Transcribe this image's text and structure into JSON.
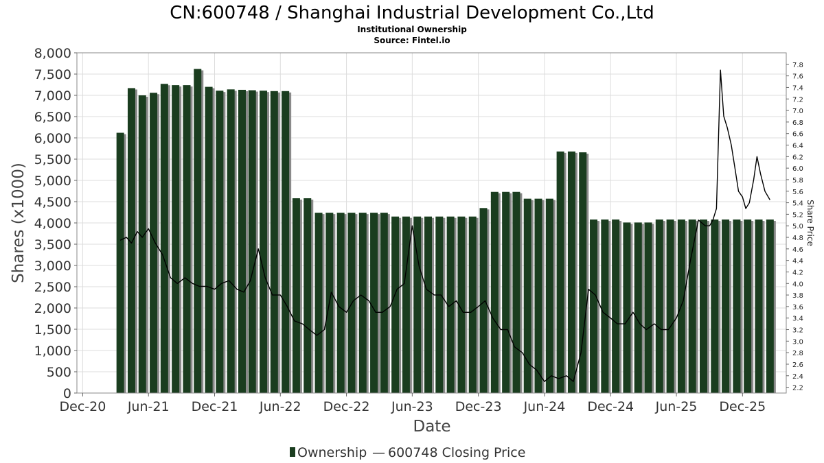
{
  "chart_data": {
    "type": "bar",
    "title": "CN:600748 / Shanghai Industrial Development Co.,Ltd",
    "subtitle": "Institutional Ownership",
    "source": "Source: Fintel.io",
    "xlabel": "Date",
    "ylabel": "Shares (x1000)",
    "y2label": "Share Price",
    "ylim": [
      0,
      8000
    ],
    "yticks": [
      0,
      500,
      1000,
      1500,
      2000,
      2500,
      3000,
      3500,
      4000,
      4500,
      5000,
      5500,
      6000,
      6500,
      7000,
      7500,
      8000
    ],
    "ytick_labels": [
      "0",
      "500",
      "1,000",
      "1,500",
      "2,000",
      "2,500",
      "3,000",
      "3,500",
      "4,000",
      "4,500",
      "5,000",
      "5,500",
      "6,000",
      "6,500",
      "7,000",
      "7,500",
      "8,000"
    ],
    "y2lim": [
      2.1,
      8.0
    ],
    "y2ticks": [
      2.2,
      2.4,
      2.6,
      2.8,
      3.0,
      3.2,
      3.4,
      3.6,
      3.8,
      4.0,
      4.2,
      4.4,
      4.6,
      4.8,
      5.0,
      5.2,
      5.4,
      5.6,
      5.8,
      6.0,
      6.2,
      6.4,
      6.6,
      6.8,
      7.0,
      7.2,
      7.4,
      7.6,
      7.8
    ],
    "xlim": [
      "2020-11-15",
      "2026-04-01"
    ],
    "xticks": [
      {
        "date": "2020-12-01",
        "label": "Dec-20"
      },
      {
        "date": "2021-06-01",
        "label": "Jun-21"
      },
      {
        "date": "2021-12-01",
        "label": "Dec-21"
      },
      {
        "date": "2022-06-01",
        "label": "Jun-22"
      },
      {
        "date": "2022-12-01",
        "label": "Dec-22"
      },
      {
        "date": "2023-06-01",
        "label": "Jun-23"
      },
      {
        "date": "2023-12-01",
        "label": "Dec-23"
      },
      {
        "date": "2024-06-01",
        "label": "Jun-24"
      },
      {
        "date": "2024-12-01",
        "label": "Dec-24"
      },
      {
        "date": "2025-06-01",
        "label": "Jun-25"
      },
      {
        "date": "2025-12-01",
        "label": "Dec-25"
      }
    ],
    "grid": true,
    "legend_position": "bottom",
    "colors": {
      "bar": "#1a3d1f",
      "bar_shadow": "#8a8a8a",
      "line": "#000000",
      "grid": "#dddddd"
    },
    "series": [
      {
        "name": "Ownership",
        "type": "bar",
        "x": [
          "2021-03-15",
          "2021-04-15",
          "2021-05-15",
          "2021-06-15",
          "2021-07-15",
          "2021-08-15",
          "2021-09-15",
          "2021-10-15",
          "2021-11-15",
          "2021-12-15",
          "2022-01-15",
          "2022-02-15",
          "2022-03-15",
          "2022-04-15",
          "2022-05-15",
          "2022-06-15",
          "2022-07-15",
          "2022-08-15",
          "2022-09-15",
          "2022-10-15",
          "2022-11-15",
          "2022-12-15",
          "2023-01-15",
          "2023-02-15",
          "2023-03-15",
          "2023-04-15",
          "2023-05-15",
          "2023-06-15",
          "2023-07-15",
          "2023-08-15",
          "2023-09-15",
          "2023-10-15",
          "2023-11-15",
          "2023-12-15",
          "2024-01-15",
          "2024-02-15",
          "2024-03-15",
          "2024-04-15",
          "2024-05-15",
          "2024-06-15",
          "2024-07-15",
          "2024-08-15",
          "2024-09-15",
          "2024-10-15",
          "2024-11-15",
          "2024-12-15",
          "2025-01-15",
          "2025-02-15",
          "2025-03-15",
          "2025-04-15",
          "2025-05-15",
          "2025-06-15",
          "2025-07-15",
          "2025-08-15",
          "2025-09-15",
          "2025-10-15",
          "2025-11-15",
          "2025-12-15",
          "2026-01-15",
          "2026-02-15"
        ],
        "values": [
          6120,
          7170,
          7000,
          7060,
          7270,
          7240,
          7240,
          7620,
          7200,
          7110,
          7140,
          7130,
          7120,
          7110,
          7100,
          7100,
          4580,
          4580,
          4240,
          4240,
          4240,
          4240,
          4240,
          4240,
          4240,
          4150,
          4150,
          4150,
          4150,
          4150,
          4150,
          4150,
          4150,
          4350,
          4730,
          4730,
          4730,
          4570,
          4570,
          4570,
          5680,
          5680,
          5660,
          4080,
          4080,
          4080,
          4010,
          4010,
          4010,
          4080,
          4080,
          4080,
          4080,
          4080,
          4080,
          4080,
          4080,
          4080,
          4080,
          4080
        ]
      },
      {
        "name": "600748 Closing Price",
        "type": "line",
        "x": [
          "2021-03-15",
          "2021-04-01",
          "2021-04-15",
          "2021-05-01",
          "2021-05-15",
          "2021-06-01",
          "2021-06-20",
          "2021-07-10",
          "2021-08-01",
          "2021-08-20",
          "2021-09-10",
          "2021-10-01",
          "2021-10-20",
          "2021-11-10",
          "2021-12-01",
          "2021-12-20",
          "2022-01-10",
          "2022-02-01",
          "2022-02-20",
          "2022-03-10",
          "2022-04-01",
          "2022-04-20",
          "2022-05-10",
          "2022-06-01",
          "2022-06-20",
          "2022-07-10",
          "2022-08-01",
          "2022-08-20",
          "2022-09-10",
          "2022-10-01",
          "2022-10-20",
          "2022-11-10",
          "2022-12-01",
          "2022-12-20",
          "2023-01-10",
          "2023-02-01",
          "2023-02-20",
          "2023-03-10",
          "2023-04-01",
          "2023-04-20",
          "2023-05-10",
          "2023-06-01",
          "2023-06-20",
          "2023-07-10",
          "2023-08-01",
          "2023-08-20",
          "2023-09-10",
          "2023-10-01",
          "2023-10-20",
          "2023-11-10",
          "2023-12-01",
          "2023-12-20",
          "2024-01-10",
          "2024-02-01",
          "2024-02-20",
          "2024-03-10",
          "2024-04-01",
          "2024-04-20",
          "2024-05-10",
          "2024-06-01",
          "2024-06-20",
          "2024-07-10",
          "2024-08-01",
          "2024-08-20",
          "2024-09-10",
          "2024-10-01",
          "2024-10-20",
          "2024-11-10",
          "2024-12-01",
          "2024-12-20",
          "2025-01-10",
          "2025-02-01",
          "2025-02-20",
          "2025-03-10",
          "2025-04-01",
          "2025-04-20",
          "2025-05-10",
          "2025-06-01",
          "2025-06-20",
          "2025-07-10",
          "2025-08-01",
          "2025-08-20",
          "2025-09-01",
          "2025-09-10",
          "2025-09-20",
          "2025-10-01",
          "2025-10-10",
          "2025-10-20",
          "2025-10-31",
          "2025-11-10",
          "2025-11-20",
          "2025-12-01",
          "2025-12-10",
          "2025-12-20",
          "2026-01-01",
          "2026-01-10",
          "2026-01-20",
          "2026-02-01",
          "2026-02-15"
        ],
        "values": [
          4.75,
          4.8,
          4.7,
          4.9,
          4.8,
          4.95,
          4.7,
          4.5,
          4.1,
          4.0,
          4.1,
          4.0,
          3.95,
          3.95,
          3.9,
          4.0,
          4.05,
          3.9,
          3.85,
          4.05,
          4.6,
          4.1,
          3.8,
          3.8,
          3.6,
          3.35,
          3.3,
          3.2,
          3.1,
          3.2,
          3.85,
          3.6,
          3.5,
          3.7,
          3.8,
          3.7,
          3.5,
          3.5,
          3.6,
          3.9,
          4.0,
          5.0,
          4.3,
          3.9,
          3.8,
          3.8,
          3.6,
          3.7,
          3.5,
          3.5,
          3.6,
          3.7,
          3.4,
          3.2,
          3.2,
          2.9,
          2.8,
          2.6,
          2.5,
          2.3,
          2.4,
          2.35,
          2.4,
          2.3,
          2.8,
          3.9,
          3.8,
          3.5,
          3.4,
          3.3,
          3.3,
          3.5,
          3.3,
          3.2,
          3.3,
          3.2,
          3.2,
          3.4,
          3.7,
          4.4,
          5.1,
          5.0,
          5.0,
          5.1,
          5.3,
          7.7,
          6.9,
          6.7,
          6.4,
          6.0,
          5.6,
          5.5,
          5.3,
          5.4,
          5.8,
          6.2,
          5.9,
          5.6,
          5.45
        ]
      }
    ]
  },
  "legend": {
    "items": [
      {
        "label": "Ownership",
        "separator": ""
      },
      {
        "label": "600748 Closing Price",
        "separator": "—"
      }
    ]
  }
}
